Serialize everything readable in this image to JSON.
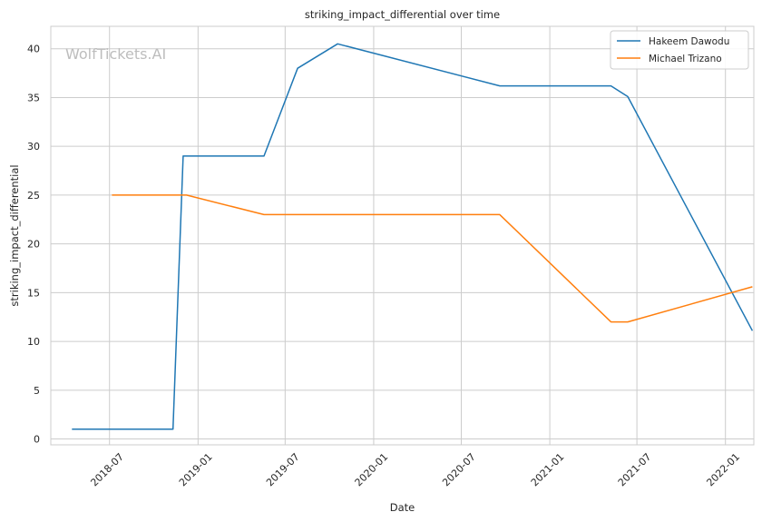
{
  "watermark": "WolfTickets.AI",
  "chart_data": {
    "type": "line",
    "title": "striking_impact_differential over time",
    "xlabel": "Date",
    "ylabel": "striking_impact_differential",
    "x_range": [
      "2018-03-01",
      "2022-03-01"
    ],
    "ylim": [
      -0.6,
      42.3
    ],
    "y_ticks": [
      0,
      5,
      10,
      15,
      20,
      25,
      30,
      35,
      40
    ],
    "x_ticks": [
      "2018-07",
      "2019-01",
      "2019-07",
      "2020-01",
      "2020-07",
      "2021-01",
      "2021-07",
      "2022-01"
    ],
    "grid": true,
    "legend_position": "top-right",
    "series": [
      {
        "name": "Hakeem Dawodu",
        "color": "#1f77b4",
        "points": [
          [
            "2018-04-14",
            1.0
          ],
          [
            "2018-11-10",
            1.0
          ],
          [
            "2018-12-01",
            29.0
          ],
          [
            "2019-05-18",
            29.0
          ],
          [
            "2019-07-27",
            38.0
          ],
          [
            "2019-10-18",
            40.5
          ],
          [
            "2020-09-19",
            36.2
          ],
          [
            "2021-05-08",
            36.2
          ],
          [
            "2021-06-12",
            35.1
          ],
          [
            "2022-02-26",
            11.1
          ]
        ]
      },
      {
        "name": "Michael Trizano",
        "color": "#ff7f0e",
        "points": [
          [
            "2018-07-06",
            25.0
          ],
          [
            "2018-12-08",
            25.0
          ],
          [
            "2019-05-18",
            23.0
          ],
          [
            "2020-09-19",
            23.0
          ],
          [
            "2021-05-08",
            12.0
          ],
          [
            "2021-06-12",
            12.0
          ],
          [
            "2022-02-26",
            15.6
          ]
        ]
      }
    ]
  }
}
